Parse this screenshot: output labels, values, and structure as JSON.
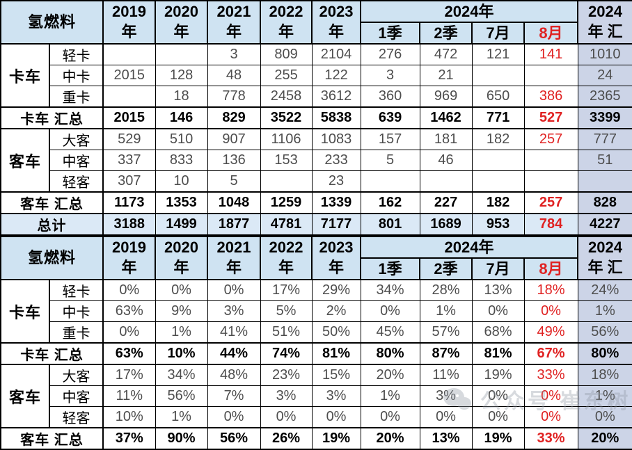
{
  "palette": {
    "header_bg": "#cfe3f2",
    "last_column_bg": "#ccd4e7",
    "total_row_bg": "#dbe9f6",
    "highlight_red": "#e02222",
    "border": "#000000"
  },
  "header": {
    "corner": "氢燃料",
    "years": [
      [
        "2019",
        "年"
      ],
      [
        "2020",
        "年"
      ],
      [
        "2021",
        "年"
      ],
      [
        "2022",
        "年"
      ],
      [
        "2023",
        "年"
      ]
    ],
    "group2024": "2024年",
    "sub2024": [
      "1季",
      "2季",
      "7月",
      "8月"
    ],
    "last": [
      "2024",
      "年 汇"
    ]
  },
  "watermark": {
    "icon": "wechat-icon",
    "text": "公众号 崔东树"
  },
  "chart_data": [
    {
      "type": "table",
      "title": "氢燃料",
      "columns": [
        "2019年",
        "2020年",
        "2021年",
        "2022年",
        "2023年",
        "2024年1季",
        "2024年2季",
        "2024年7月",
        "2024年8月",
        "2024年汇"
      ],
      "highlight_column": "2024年8月",
      "rows": [
        {
          "kind": "sub",
          "group": "卡车",
          "group_span": 3,
          "label": "轻卡",
          "values": [
            null,
            null,
            3,
            809,
            2104,
            276,
            472,
            121,
            141,
            1010
          ]
        },
        {
          "kind": "sub",
          "label": "中卡",
          "values": [
            2015,
            128,
            48,
            255,
            122,
            3,
            21,
            null,
            null,
            24
          ]
        },
        {
          "kind": "sub",
          "label": "重卡",
          "values": [
            null,
            18,
            778,
            2458,
            3612,
            360,
            969,
            650,
            386,
            2365
          ]
        },
        {
          "kind": "summary",
          "label": "卡车 汇总",
          "values": [
            2015,
            146,
            829,
            3522,
            5838,
            639,
            1462,
            771,
            527,
            3399
          ]
        },
        {
          "kind": "sub",
          "group": "客车",
          "group_span": 3,
          "label": "大客",
          "values": [
            529,
            510,
            907,
            1106,
            1083,
            157,
            181,
            182,
            257,
            777
          ]
        },
        {
          "kind": "sub",
          "label": "中客",
          "values": [
            337,
            833,
            136,
            153,
            233,
            5,
            46,
            null,
            null,
            51
          ]
        },
        {
          "kind": "sub",
          "label": "轻客",
          "values": [
            307,
            10,
            5,
            null,
            23,
            null,
            null,
            null,
            null,
            null
          ]
        },
        {
          "kind": "summary",
          "label": "客车 汇总",
          "values": [
            1173,
            1353,
            1048,
            1259,
            1339,
            162,
            227,
            182,
            257,
            828
          ]
        },
        {
          "kind": "total",
          "label": "总计",
          "values": [
            3188,
            1499,
            1877,
            4781,
            7177,
            801,
            1689,
            953,
            784,
            4227
          ]
        }
      ]
    },
    {
      "type": "table",
      "title": "氢燃料",
      "unit": "%",
      "columns": [
        "2019年",
        "2020年",
        "2021年",
        "2022年",
        "2023年",
        "2024年1季",
        "2024年2季",
        "2024年7月",
        "2024年8月",
        "2024年汇"
      ],
      "highlight_column": "2024年8月",
      "rows": [
        {
          "kind": "sub",
          "group": "卡车",
          "group_span": 3,
          "label": "轻卡",
          "values": [
            0,
            0,
            0,
            17,
            29,
            34,
            28,
            13,
            18,
            24
          ]
        },
        {
          "kind": "sub",
          "label": "中卡",
          "values": [
            63,
            9,
            3,
            5,
            2,
            0,
            1,
            0,
            0,
            1
          ]
        },
        {
          "kind": "sub",
          "label": "重卡",
          "values": [
            0,
            1,
            41,
            51,
            50,
            45,
            57,
            68,
            49,
            56
          ]
        },
        {
          "kind": "summary",
          "label": "卡车 汇总",
          "values": [
            63,
            10,
            44,
            74,
            81,
            80,
            87,
            81,
            67,
            80
          ]
        },
        {
          "kind": "sub",
          "group": "客车",
          "group_span": 3,
          "label": "大客",
          "values": [
            17,
            34,
            48,
            23,
            15,
            20,
            11,
            19,
            33,
            18
          ]
        },
        {
          "kind": "sub",
          "label": "中客",
          "values": [
            11,
            56,
            7,
            3,
            3,
            1,
            3,
            0,
            0,
            1
          ]
        },
        {
          "kind": "sub",
          "label": "轻客",
          "values": [
            10,
            1,
            0,
            0,
            0,
            0,
            0,
            0,
            0,
            0
          ]
        },
        {
          "kind": "summary",
          "label": "客车 汇总",
          "values": [
            37,
            90,
            56,
            26,
            19,
            20,
            13,
            19,
            33,
            20
          ]
        }
      ]
    }
  ]
}
